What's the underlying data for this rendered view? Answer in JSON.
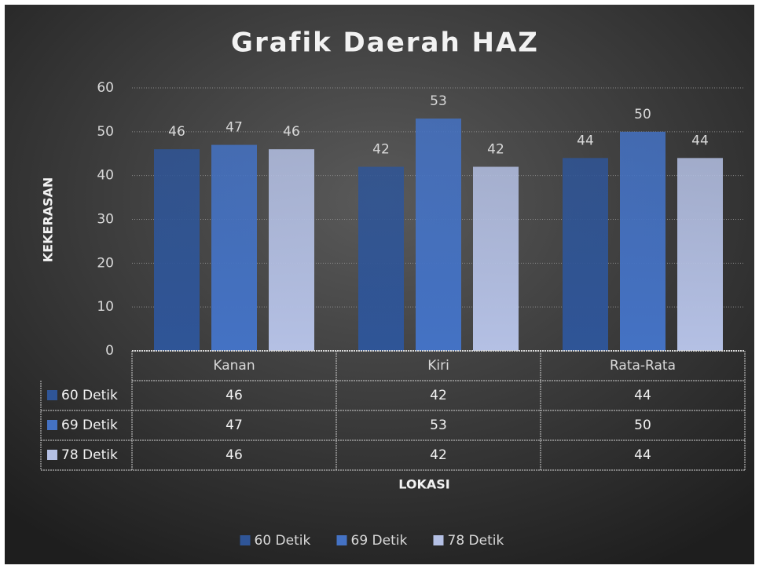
{
  "chart_data": {
    "type": "bar",
    "title": "Grafik Daerah HAZ",
    "x_label": "LOKASI",
    "y_label": "KEKERASAN",
    "categories": [
      "Kanan",
      "Kiri",
      "Rata-Rata"
    ],
    "series": [
      {
        "name": "60 Detik",
        "color": "#2f5597",
        "values": [
          46,
          42,
          44
        ]
      },
      {
        "name": "69 Detik",
        "color": "#4472c4",
        "values": [
          47,
          53,
          50
        ]
      },
      {
        "name": "78 Detik",
        "color": "#b4c0e4",
        "values": [
          46,
          42,
          44
        ]
      }
    ],
    "ylim": [
      0,
      60
    ],
    "yticks": [
      0,
      10,
      20,
      30,
      40,
      50,
      60
    ],
    "grid": true,
    "legend": "bottom",
    "data_table": true
  }
}
